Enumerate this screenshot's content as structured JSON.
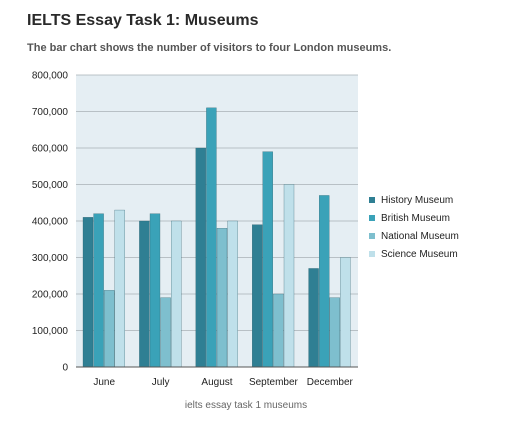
{
  "page": {
    "title": "IELTS Essay Task 1: Museums",
    "subtitle": "The bar chart shows the number of visitors to four London museums.",
    "caption": "ielts essay task 1 museums"
  },
  "chart_data": {
    "type": "bar",
    "categories": [
      "June",
      "July",
      "August",
      "September",
      "December"
    ],
    "series": [
      {
        "name": "History Museum",
        "color": "#2f7f93",
        "values": [
          410000,
          400000,
          600000,
          390000,
          270000
        ]
      },
      {
        "name": "British Museum",
        "color": "#3aa2b8",
        "values": [
          420000,
          420000,
          710000,
          590000,
          470000
        ]
      },
      {
        "name": "National Museum",
        "color": "#7ebfce",
        "values": [
          210000,
          190000,
          380000,
          200000,
          190000
        ]
      },
      {
        "name": "Science Museum",
        "color": "#bfe0ea",
        "values": [
          430000,
          400000,
          400000,
          500000,
          300000
        ]
      }
    ],
    "y_ticks": [
      "0",
      "100,000",
      "200,000",
      "300,000",
      "400,000",
      "500,000",
      "600,000",
      "700,000",
      "800,000"
    ],
    "ylim": [
      0,
      800000
    ],
    "grid": true,
    "legend_position": "right",
    "plot_background": "#e5eef3"
  }
}
